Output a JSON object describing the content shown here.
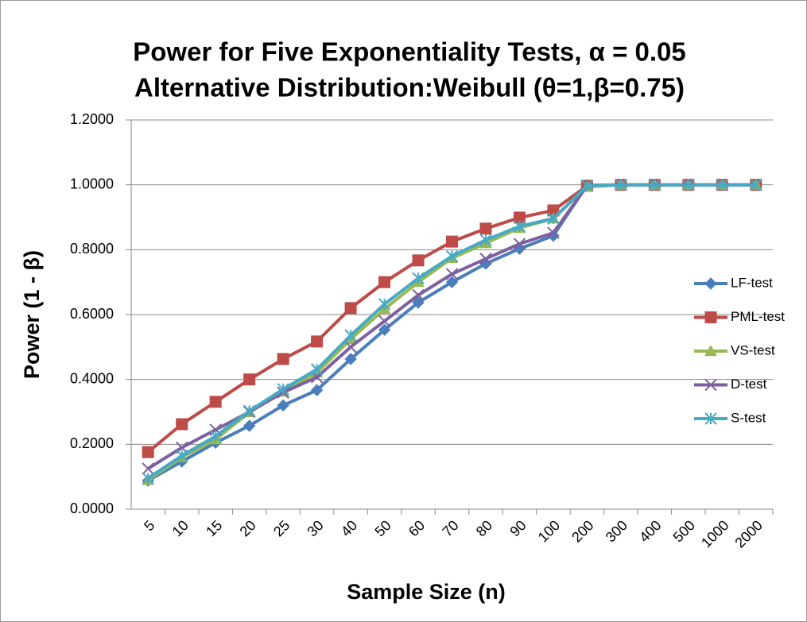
{
  "chart_data": {
    "type": "line",
    "title": "Power for Five Exponentiality Tests, α = 0.05",
    "subtitle": "Alternative Distribution:Weibull (θ=1,β=0.75)",
    "y_label": "Power (1 - β)",
    "x_label": "Sample Size (n)",
    "categories": [
      "5",
      "10",
      "15",
      "20",
      "25",
      "30",
      "40",
      "50",
      "60",
      "70",
      "80",
      "90",
      "100",
      "200",
      "300",
      "400",
      "500",
      "1000",
      "2000"
    ],
    "ylim": [
      0,
      1.2
    ],
    "yticks": [
      {
        "value": 0,
        "label": "0.0000"
      },
      {
        "value": 0.2,
        "label": "0.2000"
      },
      {
        "value": 0.4,
        "label": "0.4000"
      },
      {
        "value": 0.6,
        "label": "0.6000"
      },
      {
        "value": 0.8,
        "label": "0.8000"
      },
      {
        "value": 1,
        "label": "1.0000"
      },
      {
        "value": 1.2,
        "label": "1.2000"
      }
    ],
    "grid": true,
    "legend": "right",
    "series": [
      {
        "name": "LF-test",
        "color": "#4a7ebb",
        "marker": "diamond",
        "values": [
          0.088,
          0.147,
          0.205,
          0.257,
          0.32,
          0.367,
          0.463,
          0.553,
          0.637,
          0.7,
          0.757,
          0.803,
          0.843,
          0.999,
          1,
          1,
          1,
          1,
          1
        ]
      },
      {
        "name": "PML-test",
        "color": "#be4b48",
        "marker": "square",
        "values": [
          0.176,
          0.262,
          0.331,
          0.4,
          0.463,
          0.517,
          0.62,
          0.7,
          0.767,
          0.825,
          0.865,
          0.899,
          0.921,
          0.997,
          1,
          1,
          1,
          1,
          1
        ]
      },
      {
        "name": "VS-test",
        "color": "#98b954",
        "marker": "triangle",
        "values": [
          0.09,
          0.16,
          0.215,
          0.299,
          0.362,
          0.421,
          0.524,
          0.617,
          0.7,
          0.774,
          0.82,
          0.867,
          0.896,
          0.994,
          1,
          1,
          1,
          1,
          1
        ]
      },
      {
        "name": "D-test",
        "color": "#7d60a0",
        "marker": "x",
        "values": [
          0.125,
          0.19,
          0.245,
          0.3,
          0.36,
          0.407,
          0.5,
          0.58,
          0.66,
          0.725,
          0.772,
          0.818,
          0.852,
          0.997,
          1,
          1,
          1,
          1,
          1
        ]
      },
      {
        "name": "S-test",
        "color": "#46aac5",
        "marker": "star",
        "values": [
          0.095,
          0.165,
          0.225,
          0.303,
          0.37,
          0.431,
          0.536,
          0.632,
          0.712,
          0.78,
          0.83,
          0.872,
          0.896,
          0.997,
          1,
          1,
          1,
          1,
          1
        ]
      }
    ]
  }
}
